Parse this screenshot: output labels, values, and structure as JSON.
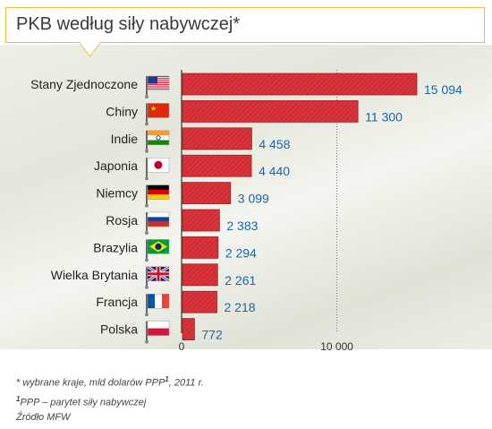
{
  "title": "PKB według siły nabywczej*",
  "chart_data": {
    "type": "bar",
    "orientation": "horizontal",
    "categories": [
      "Stany Zjednoczone",
      "Chiny",
      "Indie",
      "Japonia",
      "Niemcy",
      "Rosja",
      "Brazylia",
      "Wielka Brytania",
      "Francja",
      "Polska"
    ],
    "values": [
      15094,
      11300,
      4458,
      4440,
      3099,
      2383,
      2294,
      2261,
      2218,
      772
    ],
    "value_labels": [
      "15 094",
      "11 300",
      "4 458",
      "4 440",
      "3 099",
      "2 383",
      "2 294",
      "2 261",
      "2 218",
      "772"
    ],
    "flags": [
      "us",
      "cn",
      "in",
      "jp",
      "de",
      "ru",
      "br",
      "gb",
      "fr",
      "pl"
    ],
    "xticks": [
      0,
      10000
    ],
    "xtick_labels": [
      "0",
      "10 000"
    ],
    "xlim": [
      0,
      15500
    ],
    "colors": {
      "bar": "#d9333b",
      "bar_dark": "#b8232b",
      "value": "#1a66a8"
    }
  },
  "footnotes": {
    "line1_text": "* wybrane kraje, mld dolarów PPP",
    "line1_sup": "1",
    "line1_tail": ", 2011 r.",
    "line2_sup": "1",
    "line2_text": "PPP – parytet siły nabywczej",
    "line3_text": "Źródło MFW"
  }
}
